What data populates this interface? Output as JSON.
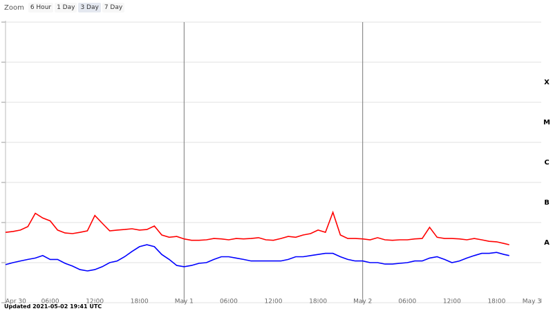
{
  "zoom": {
    "label": "Zoom",
    "options": [
      "6 Hour",
      "1 Day",
      "3 Day",
      "7 Day"
    ],
    "selected": 2
  },
  "footer": "Updated 2021-05-02 19:41 UTC",
  "chart_data": {
    "type": "line",
    "log_y": true,
    "grid": true,
    "x": [
      0,
      1,
      2,
      3,
      4,
      5,
      6,
      7,
      8,
      9,
      10,
      11,
      12,
      13,
      14,
      15,
      16,
      17,
      18,
      19,
      20,
      21,
      22,
      23,
      24,
      25,
      26,
      27,
      28,
      29,
      30,
      31,
      32,
      33,
      34,
      35,
      36,
      37,
      38,
      39,
      40,
      41,
      42,
      43,
      44,
      45,
      46,
      47,
      48,
      49,
      50,
      51,
      52,
      53,
      54,
      55,
      56,
      57,
      58,
      59,
      60,
      61,
      62,
      63,
      64,
      65,
      66,
      67,
      67.7
    ],
    "xlim": [
      0,
      72
    ],
    "xticks": [
      {
        "value": 0,
        "label": "Apr 30"
      },
      {
        "value": 6,
        "label": "06:00"
      },
      {
        "value": 12,
        "label": "12:00"
      },
      {
        "value": 18,
        "label": "18:00"
      },
      {
        "value": 24,
        "label": "May 1"
      },
      {
        "value": 30,
        "label": "06:00"
      },
      {
        "value": 36,
        "label": "12:00"
      },
      {
        "value": 42,
        "label": "18:00"
      },
      {
        "value": 48,
        "label": "May 2"
      },
      {
        "value": 54,
        "label": "06:00"
      },
      {
        "value": 60,
        "label": "12:00"
      },
      {
        "value": 66,
        "label": "18:00"
      },
      {
        "value": 72,
        "label": "May 3"
      }
    ],
    "vlines": [
      24,
      48
    ],
    "ylim": [
      1e-09,
      0.01
    ],
    "yticks": [
      1e-09,
      1e-08,
      1e-07,
      1e-06,
      1e-05,
      0.0001,
      0.001,
      0.01
    ],
    "bands": [
      {
        "label": "X",
        "from": 0.0001,
        "to": 0.001
      },
      {
        "label": "M",
        "from": 1e-05,
        "to": 0.0001
      },
      {
        "label": "C",
        "from": 1e-06,
        "to": 1e-05
      },
      {
        "label": "B",
        "from": 1e-07,
        "to": 1e-06
      },
      {
        "label": "A",
        "from": 1e-08,
        "to": 1e-07
      }
    ],
    "series": [
      {
        "color": "#ff0000",
        "values": [
          5.7e-08,
          6e-08,
          6.5e-08,
          7.9e-08,
          1.7e-07,
          1.3e-07,
          1.1e-07,
          6.5e-08,
          5.5e-08,
          5.3e-08,
          5.7e-08,
          6.2e-08,
          1.5e-07,
          9.6e-08,
          6.2e-08,
          6.5e-08,
          6.7e-08,
          7e-08,
          6.5e-08,
          6.7e-08,
          8.2e-08,
          4.9e-08,
          4.3e-08,
          4.5e-08,
          3.9e-08,
          3.6e-08,
          3.6e-08,
          3.7e-08,
          4e-08,
          3.9e-08,
          3.7e-08,
          4e-08,
          3.9e-08,
          4e-08,
          4.2e-08,
          3.7e-08,
          3.6e-08,
          4e-08,
          4.5e-08,
          4.3e-08,
          4.9e-08,
          5.3e-08,
          6.5e-08,
          5.7e-08,
          1.8e-07,
          4.9e-08,
          4e-08,
          4e-08,
          3.9e-08,
          3.7e-08,
          4.2e-08,
          3.7e-08,
          3.6e-08,
          3.7e-08,
          3.7e-08,
          3.9e-08,
          4e-08,
          7.6e-08,
          4.3e-08,
          4e-08,
          4e-08,
          3.9e-08,
          3.7e-08,
          4e-08,
          3.7e-08,
          3.4e-08,
          3.3e-08,
          3e-08,
          2.8e-08
        ]
      },
      {
        "color": "#0000ff",
        "values": [
          8.9e-09,
          1e-08,
          1.1e-08,
          1.2e-08,
          1.3e-08,
          1.5e-08,
          1.2e-08,
          1.2e-08,
          9.6e-09,
          8.2e-09,
          6.7e-09,
          6.2e-09,
          6.7e-09,
          7.9e-09,
          1e-08,
          1.1e-08,
          1.4e-08,
          1.9e-08,
          2.5e-08,
          2.8e-08,
          2.5e-08,
          1.6e-08,
          1.2e-08,
          8.5e-09,
          7.9e-09,
          8.5e-09,
          9.6e-09,
          1e-08,
          1.2e-08,
          1.4e-08,
          1.4e-08,
          1.3e-08,
          1.2e-08,
          1.1e-08,
          1.1e-08,
          1.1e-08,
          1.1e-08,
          1.1e-08,
          1.2e-08,
          1.4e-08,
          1.4e-08,
          1.5e-08,
          1.6e-08,
          1.7e-08,
          1.7e-08,
          1.4e-08,
          1.2e-08,
          1.1e-08,
          1.1e-08,
          1e-08,
          1e-08,
          9.2e-09,
          9.2e-09,
          9.6e-09,
          1e-08,
          1.1e-08,
          1.1e-08,
          1.3e-08,
          1.4e-08,
          1.2e-08,
          1e-08,
          1.1e-08,
          1.3e-08,
          1.5e-08,
          1.7e-08,
          1.7e-08,
          1.8e-08,
          1.6e-08,
          1.5e-08
        ]
      }
    ]
  }
}
